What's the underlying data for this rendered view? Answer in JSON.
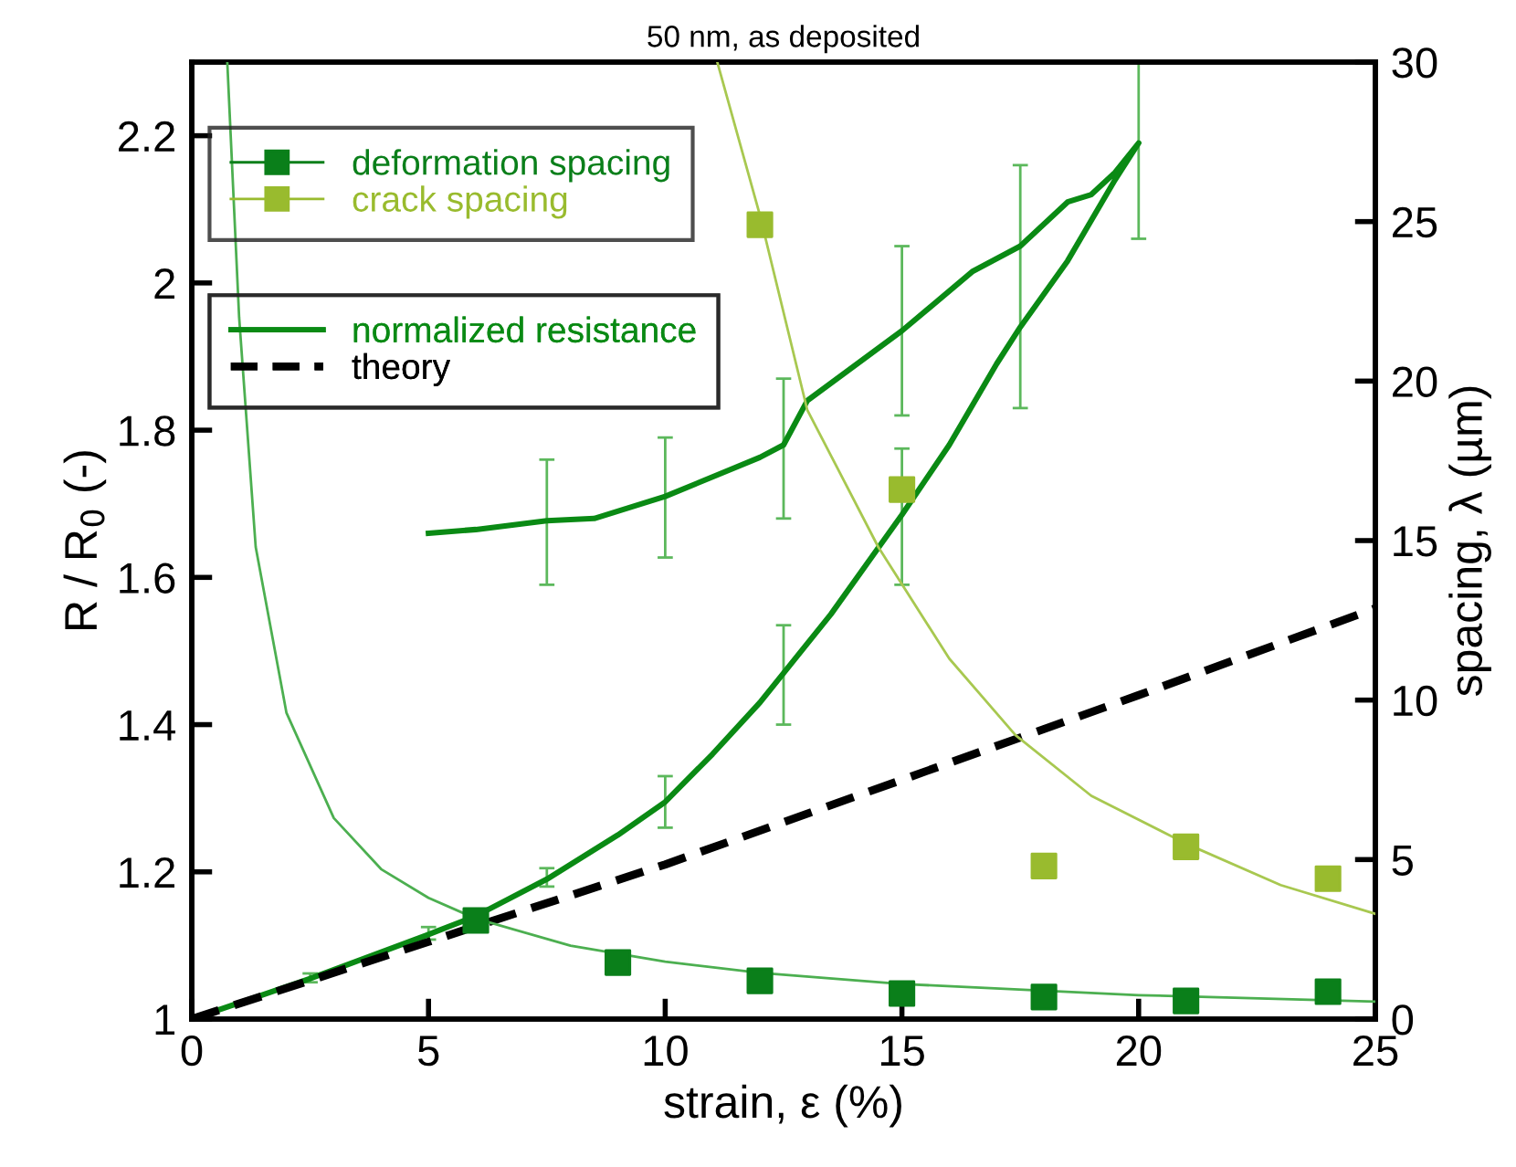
{
  "chart_data": {
    "type": "line",
    "title": "50 nm, as deposited",
    "xlabel": "strain, ε (%)",
    "ylabel": "R / R$_{0}$ (-)",
    "y2label": "spacing, λ (µm)",
    "xlim": [
      0,
      25
    ],
    "xticks": [
      0,
      5,
      10,
      15,
      20,
      25
    ],
    "ylim": [
      1,
      2.3
    ],
    "yticks": [
      1,
      1.2,
      1.4,
      1.6,
      1.8,
      2,
      2.2
    ],
    "y2lim": [
      0,
      30
    ],
    "y2ticks": [
      0,
      5,
      10,
      15,
      20,
      25,
      30
    ],
    "legend": "top left",
    "grid": false,
    "series": [
      {
        "name": "deformation spacing",
        "type": "scatter",
        "axis": "y2",
        "marker": "square",
        "color": "#0a7f1a",
        "x": [
          6,
          9,
          12,
          15,
          18,
          21,
          24
        ],
        "values": [
          3.09,
          1.77,
          1.2,
          0.8,
          0.69,
          0.57,
          0.86
        ]
      },
      {
        "axis": "y2",
        "marker": "none",
        "line_style": "solid",
        "color": "#4caf50",
        "x": [
          0.75,
          1,
          1.35,
          2,
          3,
          4,
          5,
          6,
          8,
          10,
          12,
          15,
          20,
          25
        ],
        "values": [
          30,
          22,
          14.8,
          9.6,
          6.3,
          4.7,
          3.8,
          3.15,
          2.3,
          1.8,
          1.45,
          1.1,
          0.75,
          0.55
        ]
      },
      {
        "name": "crack spacing",
        "type": "scatter",
        "axis": "y2",
        "marker": "square",
        "color": "#99bb2e",
        "x": [
          12,
          15,
          18,
          21,
          24
        ],
        "values": [
          24.9,
          16.6,
          4.8,
          5.4,
          4.4
        ]
      },
      {
        "axis": "y2",
        "marker": "none",
        "line_style": "solid",
        "color": "#a8c850",
        "x": [
          11.1,
          12,
          13,
          14.5,
          16,
          17.4,
          19,
          21,
          23,
          25
        ],
        "values": [
          30,
          25.2,
          19.1,
          14.8,
          11.3,
          8.9,
          7.0,
          5.5,
          4.2,
          3.3
        ]
      },
      {
        "name": "normalized resistance",
        "marker": "none",
        "line_style": "solid",
        "color": "#0a8a14",
        "x": [
          0,
          2.5,
          5,
          6,
          7.5,
          9,
          10,
          11,
          12,
          12.5,
          13.5,
          14.5,
          15,
          16,
          17,
          17.5,
          18.5,
          19.5,
          20,
          19.5,
          19,
          18.5,
          17.5,
          16.5,
          15,
          13,
          12.5,
          12,
          10,
          8.5,
          7.5,
          6,
          5
        ],
        "values": [
          1.0,
          1.055,
          1.115,
          1.14,
          1.19,
          1.25,
          1.295,
          1.36,
          1.43,
          1.47,
          1.55,
          1.64,
          1.685,
          1.78,
          1.89,
          1.94,
          2.03,
          2.14,
          2.19,
          2.15,
          2.12,
          2.11,
          2.05,
          2.016,
          1.935,
          1.84,
          1.78,
          1.763,
          1.71,
          1.68,
          1.677,
          1.665,
          1.66
        ],
        "errors": [
          null,
          [
            1.05,
            1.062
          ],
          [
            1.108,
            1.125
          ],
          null,
          [
            1.18,
            1.205
          ],
          null,
          [
            1.26,
            1.33
          ],
          null,
          null,
          [
            1.4,
            1.535
          ],
          null,
          null,
          [
            1.59,
            1.775
          ],
          null,
          null,
          null,
          null,
          null,
          [
            2.06,
            2.3
          ],
          null,
          null,
          null,
          [
            1.83,
            2.16
          ],
          null,
          [
            1.82,
            2.05
          ],
          null,
          [
            1.68,
            1.87
          ],
          null,
          [
            1.627,
            1.79
          ],
          null,
          [
            1.59,
            1.76
          ],
          null,
          null
        ]
      },
      {
        "name": "theory",
        "marker": "none",
        "line_style": "dashed",
        "color": "#000000",
        "x": [
          0,
          5,
          10,
          15,
          20,
          25
        ],
        "values": [
          1.0,
          1.105,
          1.21,
          1.325,
          1.44,
          1.558
        ]
      }
    ]
  }
}
